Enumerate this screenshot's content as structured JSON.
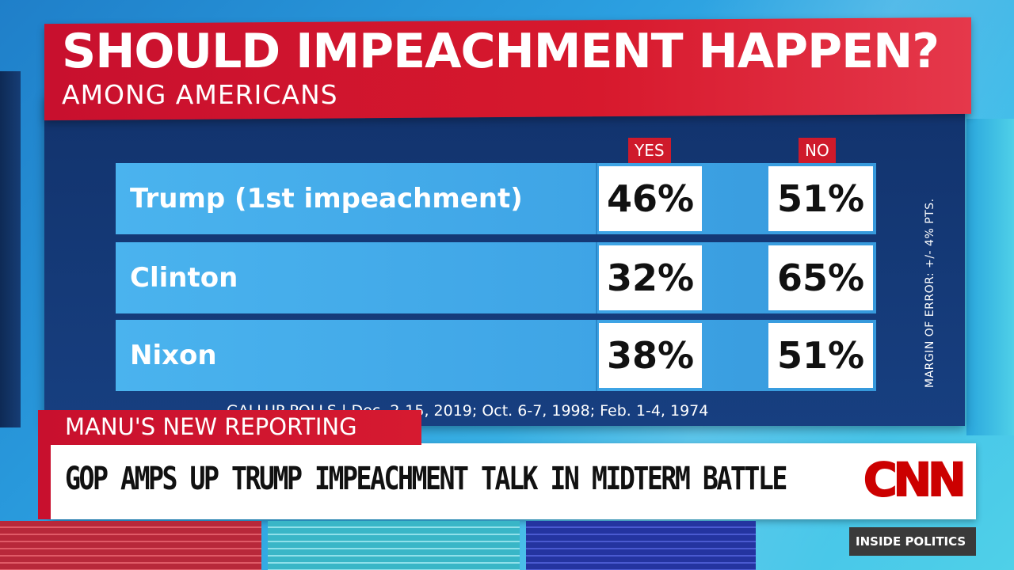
{
  "graphic": {
    "title": "SHOULD IMPEACHMENT HAPPEN?",
    "subtitle": "AMONG AMERICANS",
    "columns": {
      "yes": "YES",
      "no": "NO"
    },
    "rows": [
      {
        "name": "Trump (1st impeachment)",
        "yes": "46%",
        "no": "51%"
      },
      {
        "name": "Clinton",
        "yes": "32%",
        "no": "65%"
      },
      {
        "name": "Nixon",
        "yes": "38%",
        "no": "51%"
      }
    ],
    "margin_of_error": "MARGIN OF ERROR: +/- 4% PTS.",
    "source": "GALLUP POLLS | Dec. 2-15, 2019; Oct. 6-7, 1998; Feb. 1-4, 1974"
  },
  "lower_third": {
    "tag": "MANU'S NEW REPORTING",
    "headline": "GOP AMPS UP TRUMP IMPEACHMENT TALK IN MIDTERM BATTLE",
    "logo": "CNN",
    "show": "INSIDE POLITICS"
  },
  "colors": {
    "brand_red": "#c8102e",
    "panel_blue": "#173f80",
    "row_blue": "#3fa5e6"
  }
}
